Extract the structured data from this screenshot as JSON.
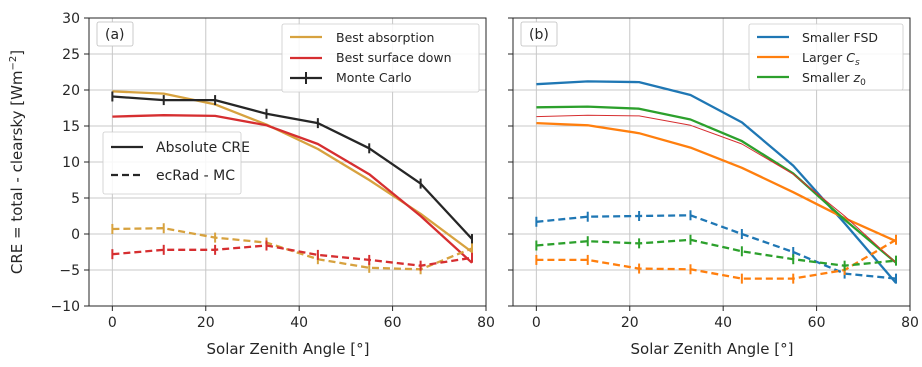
{
  "figure": {
    "ylabel": "CRE = total - clearsky [Wm⁻²]",
    "xlabel": "Solar Zenith Angle [°]"
  },
  "chart_data": [
    {
      "type": "line",
      "panel": "(a)",
      "xlabel": "Solar Zenith Angle [°]",
      "ylabel": "CRE = total - clearsky [Wm⁻²]",
      "xlim": [
        -5,
        80
      ],
      "ylim": [
        -10,
        30
      ],
      "xticks": [
        0,
        20,
        40,
        60,
        80
      ],
      "yticks": [
        -10,
        -5,
        0,
        5,
        10,
        15,
        20,
        25,
        30
      ],
      "grid": true,
      "x": [
        0,
        11,
        22,
        33,
        44,
        55,
        66,
        77
      ],
      "series": [
        {
          "name": "Best absorption",
          "color": "#d7a23f",
          "style": "solid",
          "errorbars": false,
          "values": [
            19.8,
            19.5,
            18.0,
            15.2,
            11.8,
            7.5,
            2.8,
            -2.5
          ]
        },
        {
          "name": "Best surface down",
          "color": "#d62e30",
          "style": "solid",
          "errorbars": false,
          "values": [
            16.3,
            16.5,
            16.4,
            15.1,
            12.5,
            8.3,
            2.5,
            -4.0
          ]
        },
        {
          "name": "Monte Carlo",
          "color": "#262626",
          "style": "solid",
          "errorbars": true,
          "values": [
            19.1,
            18.6,
            18.6,
            16.7,
            15.4,
            11.9,
            7.0,
            -0.7
          ]
        },
        {
          "name": "",
          "color": "#d7a23f",
          "style": "dashed",
          "errorbars": true,
          "values": [
            0.7,
            0.8,
            -0.5,
            -1.2,
            -3.5,
            -4.7,
            -4.9,
            -2.0
          ]
        },
        {
          "name": "",
          "color": "#d62e30",
          "style": "dashed",
          "errorbars": true,
          "values": [
            -2.8,
            -2.2,
            -2.2,
            -1.6,
            -2.9,
            -3.6,
            -4.4,
            -3.3
          ]
        }
      ],
      "legend": {
        "placement": "top-right",
        "entries": [
          "Best absorption",
          "Best surface down",
          "Monte Carlo"
        ]
      },
      "style_legend": {
        "placement": "center-left",
        "entries": [
          {
            "label": "Absolute CRE",
            "style": "solid"
          },
          {
            "label": "ecRad - MC",
            "style": "dashed"
          }
        ]
      }
    },
    {
      "type": "line",
      "panel": "(b)",
      "xlabel": "Solar Zenith Angle [°]",
      "xlim": [
        -5,
        80
      ],
      "ylim": [
        -10,
        30
      ],
      "xticks": [
        0,
        20,
        40,
        60,
        80
      ],
      "grid": true,
      "x": [
        0,
        11,
        22,
        33,
        44,
        55,
        66,
        77
      ],
      "series": [
        {
          "name": "Smaller FSD",
          "color": "#1f77b4",
          "style": "solid",
          "errorbars": false,
          "values": [
            20.8,
            21.2,
            21.1,
            19.3,
            15.5,
            9.5,
            1.5,
            -6.8
          ]
        },
        {
          "name": "Larger C_s",
          "color": "#ff7f0e",
          "style": "solid",
          "errorbars": false,
          "values": [
            15.4,
            15.1,
            14.0,
            12.0,
            9.2,
            5.8,
            2.2,
            -1.0
          ]
        },
        {
          "name": "Smaller z_0",
          "color": "#2ca02c",
          "style": "solid",
          "errorbars": false,
          "values": [
            17.6,
            17.7,
            17.4,
            15.9,
            12.9,
            8.4,
            2.0,
            -4.0
          ]
        },
        {
          "name": "",
          "color": "#d62e30",
          "style": "solid-thin",
          "errorbars": false,
          "values": [
            16.3,
            16.5,
            16.4,
            15.1,
            12.5,
            8.3,
            2.5,
            -4.0
          ]
        },
        {
          "name": "",
          "color": "#1f77b4",
          "style": "dashed",
          "errorbars": true,
          "values": [
            1.7,
            2.4,
            2.5,
            2.6,
            0.0,
            -2.5,
            -5.5,
            -6.2
          ]
        },
        {
          "name": "",
          "color": "#ff7f0e",
          "style": "dashed",
          "errorbars": true,
          "values": [
            -3.6,
            -3.6,
            -4.8,
            -4.9,
            -6.2,
            -6.2,
            -5.0,
            -0.8
          ]
        },
        {
          "name": "",
          "color": "#2ca02c",
          "style": "dashed",
          "errorbars": true,
          "values": [
            -1.6,
            -1.0,
            -1.3,
            -0.8,
            -2.4,
            -3.5,
            -4.4,
            -3.7
          ]
        }
      ],
      "legend": {
        "placement": "top-right",
        "entries": [
          "Smaller FSD",
          "Larger C_s",
          "Smaller z_0"
        ]
      }
    }
  ]
}
